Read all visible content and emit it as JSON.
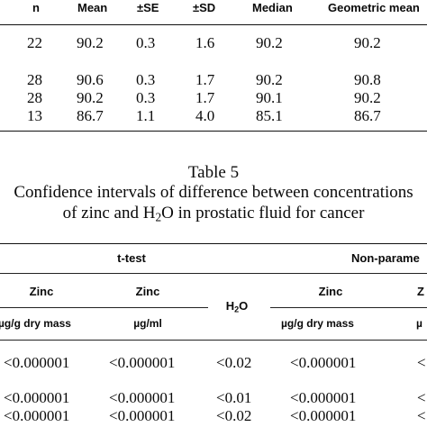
{
  "table_top": {
    "headers": [
      "n",
      "Mean",
      "±SE",
      "±SD",
      "Median",
      "Geometric mean"
    ],
    "rows": [
      [
        "22",
        "90.2",
        "0.3",
        "1.6",
        "90.2",
        "90.2"
      ],
      [
        "28",
        "90.6",
        "0.3",
        "1.7",
        "90.2",
        "90.8"
      ],
      [
        "28",
        "90.2",
        "0.3",
        "1.7",
        "90.1",
        "90.2"
      ],
      [
        "13",
        "86.7",
        "1.1",
        "4.0",
        "85.1",
        "86.7"
      ]
    ]
  },
  "caption": {
    "title": "Table 5",
    "line1": "Confidence intervals of difference between concentrations",
    "line2_pre": "of zinc and H",
    "line2_sub": "2",
    "line2_post": "O in prostatic fluid for cancer"
  },
  "table_bottom": {
    "group_ttest": "t-test",
    "group_nonparam": "Non-parame",
    "col_zinc_1": "Zinc",
    "col_zinc_2": "Zinc",
    "col_h2o_pre": "H",
    "col_h2o_sub": "2",
    "col_h2o_post": "O",
    "col_zinc_3": "Zinc",
    "col_zinc_4_partial": "Z",
    "unit_1": "µg/g dry mass",
    "unit_2": "µg/ml",
    "unit_3": "µg/g dry mass",
    "unit_4_partial": "µ",
    "rows": [
      [
        "<0.000001",
        "<0.000001",
        "<0.02",
        "<0.000001",
        "<"
      ],
      [
        "<0.000001",
        "<0.000001",
        "<0.01",
        "<0.000001",
        "<"
      ],
      [
        "<0.000001",
        "<0.000001",
        "<0.02",
        "<0.000001",
        "<"
      ]
    ]
  }
}
